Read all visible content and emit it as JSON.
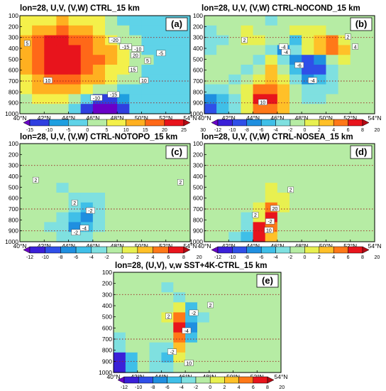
{
  "chart_data": [
    {
      "type": "heatmap",
      "title": "lon=28, U,V, (V,W) CTRL_15 km",
      "label": "(a)",
      "x_ticks": [
        "40°N",
        "42°N",
        "44°N",
        "46°N",
        "48°N",
        "50°N",
        "52°N",
        "54°N"
      ],
      "y_ticks": [
        "100",
        "200",
        "300",
        "400",
        "500",
        "600",
        "700",
        "800",
        "900",
        "1000"
      ],
      "xlim": [
        40,
        54
      ],
      "ylim": [
        1000,
        100
      ],
      "colorbar_ticks": [
        "-15",
        "-10",
        "-5",
        "0",
        "5",
        "10",
        "15",
        "20",
        "25",
        "30"
      ],
      "colorbar_colors": [
        "#6a00c8",
        "#2f3fe0",
        "#1f9fe0",
        "#5fd3e8",
        "#b6eca4",
        "#f4f04a",
        "#ffb020",
        "#ff6818",
        "#e8141c",
        "#b40a14"
      ],
      "contour_labels": [
        {
          "text": "20",
          "lat": 49.5,
          "p": 470
        },
        {
          "text": "15",
          "lat": 49.3,
          "p": 600
        },
        {
          "text": "10",
          "lat": 50.2,
          "p": 700
        },
        {
          "text": "5",
          "lat": 50.5,
          "p": 520
        },
        {
          "text": "-15",
          "lat": 47.7,
          "p": 830
        },
        {
          "text": "-10",
          "lat": 46.3,
          "p": 860
        },
        {
          "text": "-20",
          "lat": 47.8,
          "p": 330
        },
        {
          "text": "-15",
          "lat": 48.7,
          "p": 390
        },
        {
          "text": "-10",
          "lat": 49.7,
          "p": 410
        },
        {
          "text": "-5",
          "lat": 51.6,
          "p": 450
        },
        {
          "text": "10",
          "lat": 42.3,
          "p": 700
        },
        {
          "text": "5",
          "lat": 40.6,
          "p": 360
        }
      ],
      "value_field": [
        [
          10,
          12,
          14,
          15,
          14,
          12,
          10,
          7,
          4,
          2,
          1,
          0,
          0,
          0
        ],
        [
          12,
          16,
          19,
          20,
          18,
          15,
          12,
          9,
          6,
          3,
          2,
          1,
          0,
          0
        ],
        [
          15,
          20,
          25,
          26,
          24,
          20,
          16,
          12,
          8,
          5,
          3,
          1,
          0,
          0
        ],
        [
          17,
          22,
          27,
          28,
          27,
          23,
          19,
          15,
          11,
          7,
          4,
          2,
          1,
          0
        ],
        [
          17,
          23,
          28,
          29,
          27,
          24,
          20,
          16,
          12,
          8,
          5,
          2,
          1,
          0
        ],
        [
          16,
          22,
          26,
          27,
          25,
          22,
          18,
          14,
          11,
          7,
          4,
          2,
          1,
          0
        ],
        [
          14,
          19,
          23,
          24,
          22,
          19,
          16,
          12,
          9,
          6,
          3,
          2,
          1,
          0
        ],
        [
          11,
          15,
          18,
          18,
          16,
          13,
          9,
          6,
          4,
          2,
          1,
          0,
          0,
          0
        ],
        [
          8,
          11,
          13,
          10,
          6,
          2,
          -6,
          -8,
          -3,
          0,
          1,
          1,
          0,
          0
        ],
        [
          6,
          8,
          9,
          7,
          3,
          -6,
          -14,
          -15,
          -6,
          0,
          1,
          1,
          0,
          0
        ]
      ]
    },
    {
      "type": "heatmap",
      "title": "lon=28, U,V, (V,W) CTRL-NOCOND_15 km",
      "label": "(b)",
      "x_ticks": [
        "40°N",
        "42°N",
        "44°N",
        "46°N",
        "48°N",
        "50°N",
        "52°N",
        "54°N"
      ],
      "y_ticks": [
        "100",
        "200",
        "300",
        "400",
        "500",
        "600",
        "700",
        "800",
        "900",
        "1000"
      ],
      "xlim": [
        40,
        54
      ],
      "ylim": [
        1000,
        100
      ],
      "colorbar_ticks": [
        "-12",
        "-10",
        "-8",
        "-6",
        "-4",
        "-2",
        "0",
        "2",
        "4",
        "6",
        "8",
        "20"
      ],
      "colorbar_colors": [
        "#6a00c8",
        "#3a20d8",
        "#2f4fe8",
        "#1f8fe0",
        "#3fbfe8",
        "#7fe0e0",
        "#b6eca4",
        "#e8f050",
        "#ffc028",
        "#ff7818",
        "#e8141c",
        "#b40a14"
      ],
      "contour_labels": [
        {
          "text": "-4",
          "lat": 46.5,
          "p": 390
        },
        {
          "text": "-6",
          "lat": 47.8,
          "p": 560
        },
        {
          "text": "-4",
          "lat": 48.9,
          "p": 700
        },
        {
          "text": "-4",
          "lat": 46.7,
          "p": 440
        },
        {
          "text": "2",
          "lat": 43.3,
          "p": 330
        },
        {
          "text": "4",
          "lat": 52.4,
          "p": 390
        },
        {
          "text": "10",
          "lat": 44.8,
          "p": 900
        },
        {
          "text": "2",
          "lat": 51.8,
          "p": 300
        }
      ],
      "value_field": [
        [
          0,
          0,
          1,
          1,
          0,
          -1,
          0,
          1,
          1,
          0,
          0,
          0,
          0,
          0
        ],
        [
          -1,
          0,
          1,
          2,
          1,
          0,
          1,
          2,
          3,
          2,
          1,
          0,
          0,
          0
        ],
        [
          -2,
          -1,
          0,
          2,
          2,
          1,
          0,
          -3,
          2,
          4,
          6,
          3,
          1,
          0
        ],
        [
          -1,
          0,
          1,
          1,
          0,
          -1,
          -5,
          -2,
          3,
          5,
          7,
          4,
          1,
          0
        ],
        [
          0,
          1,
          1,
          0,
          -2,
          2,
          -1,
          -6,
          -8,
          -5,
          0,
          2,
          1,
          0
        ],
        [
          0,
          1,
          0,
          -1,
          1,
          4,
          1,
          -4,
          -8,
          -7,
          -2,
          1,
          1,
          0
        ],
        [
          0,
          0,
          -1,
          0,
          3,
          5,
          2,
          -2,
          -5,
          -4,
          -2,
          0,
          0,
          0
        ],
        [
          -2,
          -1,
          0,
          2,
          6,
          7,
          4,
          0,
          -2,
          -2,
          -1,
          0,
          0,
          0
        ],
        [
          -6,
          -3,
          -1,
          3,
          8,
          8,
          5,
          1,
          -1,
          -1,
          0,
          0,
          0,
          0
        ],
        [
          -8,
          -4,
          -1,
          2,
          6,
          6,
          4,
          1,
          0,
          0,
          0,
          0,
          0,
          0
        ]
      ]
    },
    {
      "type": "heatmap",
      "title": "lon=28, U,V, (V,W) CTRL-NOTOPO_15 km",
      "label": "(c)",
      "x_ticks": [
        "40°N",
        "42°N",
        "44°N",
        "46°N",
        "48°N",
        "50°N",
        "52°N",
        "54°N"
      ],
      "y_ticks": [
        "100",
        "200",
        "300",
        "400",
        "500",
        "600",
        "700",
        "800",
        "900",
        "1000"
      ],
      "xlim": [
        40,
        54
      ],
      "ylim": [
        1000,
        100
      ],
      "colorbar_ticks": [
        "-12",
        "-10",
        "-8",
        "-6",
        "-4",
        "-2",
        "0",
        "2",
        "4",
        "6",
        "8",
        "20"
      ],
      "colorbar_colors": [
        "#6a00c8",
        "#3a20d8",
        "#2f4fe8",
        "#1f8fe0",
        "#3fbfe8",
        "#7fe0e0",
        "#b6eca4",
        "#e8f050",
        "#ffc028",
        "#ff7818",
        "#e8141c",
        "#b40a14"
      ],
      "contour_labels": [
        {
          "text": "-4",
          "lat": 45.3,
          "p": 880
        },
        {
          "text": "2",
          "lat": 44.5,
          "p": 650
        },
        {
          "text": "-2",
          "lat": 45.8,
          "p": 720
        },
        {
          "text": "2",
          "lat": 53.2,
          "p": 460
        },
        {
          "text": "2",
          "lat": 41.3,
          "p": 440
        },
        {
          "text": "-2",
          "lat": 44.6,
          "p": 920
        }
      ],
      "value_field": [
        [
          0,
          0,
          1,
          0,
          0,
          0,
          0,
          0,
          0,
          0,
          0,
          0,
          0,
          0
        ],
        [
          1,
          0,
          0,
          1,
          0,
          0,
          0,
          1,
          0,
          0,
          0,
          0,
          0,
          0
        ],
        [
          1,
          1,
          0,
          0,
          1,
          0,
          0,
          0,
          0,
          1,
          0,
          0,
          0,
          0
        ],
        [
          0,
          1,
          1,
          0,
          0,
          0,
          0,
          0,
          0,
          0,
          0,
          1,
          1,
          0
        ],
        [
          0,
          0,
          0,
          -1,
          0,
          0,
          1,
          0,
          0,
          0,
          0,
          0,
          0,
          0
        ],
        [
          0,
          0,
          0,
          0,
          -1,
          -2,
          -1,
          0,
          0,
          0,
          0,
          0,
          0,
          0
        ],
        [
          0,
          0,
          0,
          0,
          -2,
          -4,
          -1,
          0,
          0,
          0,
          0,
          0,
          0,
          0
        ],
        [
          0,
          0,
          0,
          -1,
          -3,
          -6,
          -2,
          0,
          0,
          0,
          0,
          0,
          0,
          0
        ],
        [
          0,
          0,
          -1,
          -2,
          -5,
          -4,
          -1,
          0,
          0,
          0,
          0,
          0,
          0,
          0
        ],
        [
          0,
          0,
          0,
          -1,
          -2,
          -2,
          0,
          0,
          0,
          0,
          0,
          0,
          0,
          0
        ]
      ]
    },
    {
      "type": "heatmap",
      "title": "lon=28, U,V, (V,W) CTRL-NOSEA_15 km",
      "label": "(d)",
      "x_ticks": [
        "40°N",
        "42°N",
        "44°N",
        "46°N",
        "48°N",
        "50°N",
        "52°N",
        "54°N"
      ],
      "y_ticks": [
        "100",
        "200",
        "300",
        "400",
        "500",
        "600",
        "700",
        "800",
        "900",
        "1000"
      ],
      "xlim": [
        40,
        54
      ],
      "ylim": [
        1000,
        100
      ],
      "colorbar_ticks": [
        "-12",
        "-10",
        "-8",
        "-6",
        "-4",
        "-2",
        "0",
        "2",
        "4",
        "6",
        "8",
        "20"
      ],
      "colorbar_colors": [
        "#6a00c8",
        "#3a20d8",
        "#2f4fe8",
        "#1f8fe0",
        "#3fbfe8",
        "#7fe0e0",
        "#b6eca4",
        "#e8f050",
        "#ffc028",
        "#ff7818",
        "#e8141c",
        "#b40a14"
      ],
      "contour_labels": [
        {
          "text": "20",
          "lat": 45.8,
          "p": 700
        },
        {
          "text": "2",
          "lat": 44.2,
          "p": 760
        },
        {
          "text": "10",
          "lat": 45.3,
          "p": 900
        },
        {
          "text": "-2",
          "lat": 45.4,
          "p": 820
        },
        {
          "text": "2",
          "lat": 47.1,
          "p": 530
        }
      ],
      "value_field": [
        [
          0,
          0,
          0,
          0,
          0,
          0,
          0,
          0,
          0,
          0,
          0,
          0,
          0,
          0
        ],
        [
          0,
          0,
          0,
          1,
          0,
          0,
          0,
          0,
          0,
          0,
          0,
          0,
          0,
          0
        ],
        [
          0,
          0,
          0,
          0,
          1,
          0,
          0,
          0,
          0,
          0,
          0,
          0,
          0,
          0
        ],
        [
          0,
          0,
          0,
          0,
          0,
          1,
          0,
          0,
          0,
          0,
          0,
          0,
          0,
          0
        ],
        [
          0,
          0,
          0,
          0,
          0,
          2,
          1,
          0,
          0,
          0,
          0,
          0,
          0,
          0
        ],
        [
          0,
          0,
          0,
          0,
          0,
          3,
          2,
          0,
          0,
          0,
          0,
          0,
          0,
          0
        ],
        [
          0,
          0,
          0,
          0,
          2,
          6,
          2,
          0,
          0,
          0,
          0,
          0,
          0,
          0
        ],
        [
          0,
          0,
          0,
          -1,
          3,
          8,
          1,
          0,
          0,
          0,
          0,
          0,
          0,
          0
        ],
        [
          0,
          0,
          0,
          -2,
          8,
          6,
          0,
          0,
          0,
          0,
          0,
          0,
          0,
          0
        ],
        [
          0,
          0,
          -1,
          -4,
          9,
          4,
          0,
          0,
          0,
          0,
          0,
          0,
          0,
          0
        ]
      ]
    },
    {
      "type": "heatmap",
      "title": "lon=28, (U,V), v,w SST+4K-CTRL_15 km",
      "label": "(e)",
      "x_ticks": [
        "40°N",
        "42°N",
        "44°N",
        "46°N",
        "48°N",
        "50°N",
        "52°N",
        "54°N"
      ],
      "y_ticks": [
        "100",
        "200",
        "300",
        "400",
        "500",
        "600",
        "700",
        "800",
        "900",
        "1000"
      ],
      "xlim": [
        40,
        54
      ],
      "ylim": [
        1000,
        100
      ],
      "colorbar_ticks": [
        "-12",
        "-10",
        "-8",
        "-6",
        "-4",
        "-2",
        "0",
        "2",
        "4",
        "6",
        "8",
        "20"
      ],
      "colorbar_colors": [
        "#6a00c8",
        "#3a20d8",
        "#2f4fe8",
        "#1f8fe0",
        "#3fbfe8",
        "#7fe0e0",
        "#b6eca4",
        "#e8f050",
        "#ffc028",
        "#ff7818",
        "#e8141c",
        "#b40a14"
      ],
      "contour_labels": [
        {
          "text": "-2",
          "lat": 46.7,
          "p": 470
        },
        {
          "text": "-4",
          "lat": 46.1,
          "p": 630
        },
        {
          "text": "2",
          "lat": 44.6,
          "p": 500
        },
        {
          "text": "2",
          "lat": 48.1,
          "p": 400
        },
        {
          "text": "-2",
          "lat": 44.9,
          "p": 820
        },
        {
          "text": "10",
          "lat": 46.3,
          "p": 920
        }
      ],
      "value_field": [
        [
          0,
          1,
          0,
          0,
          0,
          0,
          0,
          0,
          0,
          0,
          0,
          0,
          0,
          0
        ],
        [
          0,
          0,
          1,
          0,
          -1,
          0,
          0,
          1,
          0,
          0,
          0,
          0,
          0,
          0
        ],
        [
          1,
          0,
          0,
          1,
          0,
          -2,
          0,
          0,
          1,
          0,
          0,
          0,
          0,
          0
        ],
        [
          0,
          0,
          1,
          0,
          1,
          2,
          -3,
          1,
          0,
          0,
          0,
          0,
          0,
          0
        ],
        [
          1,
          0,
          0,
          1,
          2,
          6,
          -4,
          -1,
          0,
          1,
          0,
          0,
          0,
          0
        ],
        [
          0,
          1,
          0,
          0,
          1,
          8,
          -5,
          0,
          0,
          0,
          0,
          0,
          0,
          0
        ],
        [
          -1,
          0,
          1,
          0,
          0,
          6,
          -3,
          1,
          0,
          0,
          0,
          0,
          0,
          0
        ],
        [
          -2,
          0,
          0,
          -1,
          -2,
          4,
          0,
          0,
          0,
          0,
          0,
          0,
          0,
          0
        ],
        [
          -9,
          -3,
          0,
          -2,
          -3,
          2,
          1,
          0,
          0,
          0,
          0,
          0,
          0,
          0
        ],
        [
          -10,
          -3,
          0,
          -1,
          -2,
          1,
          0,
          0,
          0,
          0,
          0,
          0,
          0,
          0
        ]
      ]
    }
  ]
}
